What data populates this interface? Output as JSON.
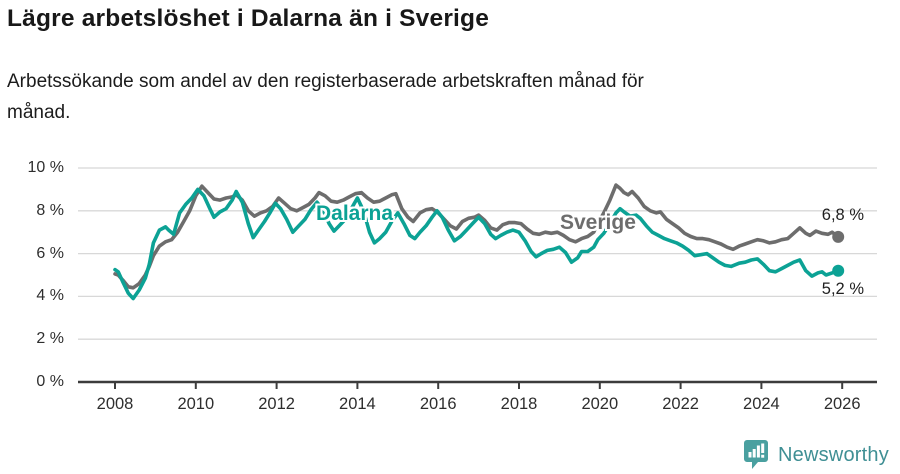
{
  "title": "Lägre arbetslöshet i Dalarna än i Sverige",
  "subtitle": "Arbetssökande som andel av den registerbaserade arbetskraften månad för\nmånad.",
  "branding": {
    "logo_text": "Newsworthy",
    "logo_icon": "newsworthy-speech-bubble-bar-chart-icon"
  },
  "colors": {
    "teal": "#0CA295",
    "gray": "#6D6D6D",
    "grid": "#D8D8D8",
    "axis": "#3C3C3C",
    "title_text": "#181818",
    "tick_text": "#2E2E2E",
    "logo_bubble": "#4AA0A0",
    "logo_text": "#3F8F94"
  },
  "chart_data": {
    "type": "line",
    "title": "Lägre arbetslöshet i Dalarna än i Sverige",
    "subtitle": "Arbetssökande som andel av den registerbaserade arbetskraften månad för månad.",
    "xlabel": "",
    "ylabel": "",
    "grid": true,
    "legend": "inline-labels-on-lines",
    "x_axis": {
      "range_years": [
        2007.3,
        2026.8
      ],
      "ticks": [
        {
          "label": "2008",
          "value": 2008
        },
        {
          "label": "2010",
          "value": 2010
        },
        {
          "label": "2012",
          "value": 2012
        },
        {
          "label": "2014",
          "value": 2014
        },
        {
          "label": "2016",
          "value": 2016
        },
        {
          "label": "2018",
          "value": 2018
        },
        {
          "label": "2020",
          "value": 2020
        },
        {
          "label": "2022",
          "value": 2022
        },
        {
          "label": "2024",
          "value": 2024
        },
        {
          "label": "2026",
          "value": 2026
        }
      ]
    },
    "y_axis": {
      "range": [
        0,
        10
      ],
      "ticks": [
        {
          "label": "0 %",
          "value": 0
        },
        {
          "label": "2 %",
          "value": 2
        },
        {
          "label": "4 %",
          "value": 4
        },
        {
          "label": "6 %",
          "value": 6
        },
        {
          "label": "8 %",
          "value": 8
        },
        {
          "label": "10 %",
          "value": 10
        }
      ]
    },
    "series": [
      {
        "name": "Dalarna",
        "color": "#0CA295",
        "end_label": "5,2 %",
        "end_value": 5.2,
        "points": [
          [
            2008.0,
            5.25
          ],
          [
            2008.08,
            5.15
          ],
          [
            2008.2,
            4.65
          ],
          [
            2008.33,
            4.15
          ],
          [
            2008.45,
            3.9
          ],
          [
            2008.6,
            4.3
          ],
          [
            2008.75,
            4.85
          ],
          [
            2008.85,
            5.5
          ],
          [
            2008.95,
            6.5
          ],
          [
            2009.1,
            7.1
          ],
          [
            2009.25,
            7.25
          ],
          [
            2009.33,
            7.1
          ],
          [
            2009.45,
            6.9
          ],
          [
            2009.6,
            7.9
          ],
          [
            2009.75,
            8.3
          ],
          [
            2009.9,
            8.6
          ],
          [
            2010.05,
            9.0
          ],
          [
            2010.2,
            8.7
          ],
          [
            2010.35,
            8.1
          ],
          [
            2010.45,
            7.7
          ],
          [
            2010.6,
            7.95
          ],
          [
            2010.75,
            8.1
          ],
          [
            2010.9,
            8.5
          ],
          [
            2011.0,
            8.9
          ],
          [
            2011.15,
            8.4
          ],
          [
            2011.3,
            7.4
          ],
          [
            2011.42,
            6.75
          ],
          [
            2011.55,
            7.1
          ],
          [
            2011.7,
            7.5
          ],
          [
            2011.85,
            7.95
          ],
          [
            2011.97,
            8.35
          ],
          [
            2012.1,
            8.1
          ],
          [
            2012.25,
            7.6
          ],
          [
            2012.4,
            7.0
          ],
          [
            2012.55,
            7.3
          ],
          [
            2012.7,
            7.6
          ],
          [
            2012.85,
            8.05
          ],
          [
            2013.0,
            8.4
          ],
          [
            2013.15,
            8.05
          ],
          [
            2013.3,
            7.4
          ],
          [
            2013.42,
            7.05
          ],
          [
            2013.55,
            7.3
          ],
          [
            2013.7,
            7.6
          ],
          [
            2013.85,
            8.1
          ],
          [
            2014.0,
            8.6
          ],
          [
            2014.15,
            8.0
          ],
          [
            2014.3,
            7.0
          ],
          [
            2014.42,
            6.5
          ],
          [
            2014.55,
            6.7
          ],
          [
            2014.7,
            7.0
          ],
          [
            2014.85,
            7.5
          ],
          [
            2015.0,
            7.9
          ],
          [
            2015.15,
            7.4
          ],
          [
            2015.3,
            6.85
          ],
          [
            2015.42,
            6.7
          ],
          [
            2015.55,
            7.0
          ],
          [
            2015.7,
            7.3
          ],
          [
            2015.85,
            7.7
          ],
          [
            2015.97,
            8.0
          ],
          [
            2016.1,
            7.7
          ],
          [
            2016.25,
            7.1
          ],
          [
            2016.4,
            6.6
          ],
          [
            2016.55,
            6.8
          ],
          [
            2016.7,
            7.1
          ],
          [
            2016.85,
            7.4
          ],
          [
            2017.0,
            7.7
          ],
          [
            2017.15,
            7.4
          ],
          [
            2017.3,
            6.9
          ],
          [
            2017.42,
            6.7
          ],
          [
            2017.55,
            6.85
          ],
          [
            2017.7,
            7.0
          ],
          [
            2017.85,
            7.1
          ],
          [
            2018.0,
            7.0
          ],
          [
            2018.15,
            6.6
          ],
          [
            2018.3,
            6.1
          ],
          [
            2018.42,
            5.85
          ],
          [
            2018.55,
            6.0
          ],
          [
            2018.7,
            6.15
          ],
          [
            2018.85,
            6.2
          ],
          [
            2019.0,
            6.3
          ],
          [
            2019.15,
            6.05
          ],
          [
            2019.3,
            5.6
          ],
          [
            2019.45,
            5.8
          ],
          [
            2019.55,
            6.1
          ],
          [
            2019.7,
            6.1
          ],
          [
            2019.85,
            6.3
          ],
          [
            2019.95,
            6.65
          ],
          [
            2020.1,
            6.95
          ],
          [
            2020.25,
            7.4
          ],
          [
            2020.4,
            7.9
          ],
          [
            2020.5,
            8.1
          ],
          [
            2020.6,
            7.95
          ],
          [
            2020.75,
            7.75
          ],
          [
            2020.9,
            7.8
          ],
          [
            2021.0,
            7.65
          ],
          [
            2021.15,
            7.3
          ],
          [
            2021.3,
            7.0
          ],
          [
            2021.45,
            6.85
          ],
          [
            2021.6,
            6.7
          ],
          [
            2021.75,
            6.6
          ],
          [
            2021.9,
            6.5
          ],
          [
            2022.05,
            6.35
          ],
          [
            2022.2,
            6.15
          ],
          [
            2022.35,
            5.9
          ],
          [
            2022.5,
            5.95
          ],
          [
            2022.65,
            6.0
          ],
          [
            2022.8,
            5.8
          ],
          [
            2022.95,
            5.6
          ],
          [
            2023.1,
            5.45
          ],
          [
            2023.25,
            5.4
          ],
          [
            2023.45,
            5.55
          ],
          [
            2023.6,
            5.6
          ],
          [
            2023.75,
            5.7
          ],
          [
            2023.9,
            5.75
          ],
          [
            2024.05,
            5.5
          ],
          [
            2024.2,
            5.2
          ],
          [
            2024.35,
            5.15
          ],
          [
            2024.5,
            5.3
          ],
          [
            2024.65,
            5.45
          ],
          [
            2024.8,
            5.6
          ],
          [
            2024.95,
            5.7
          ],
          [
            2025.1,
            5.2
          ],
          [
            2025.25,
            4.95
          ],
          [
            2025.4,
            5.1
          ],
          [
            2025.5,
            5.15
          ],
          [
            2025.6,
            5.0
          ],
          [
            2025.75,
            5.1
          ],
          [
            2025.9,
            5.2
          ]
        ]
      },
      {
        "name": "Sverige",
        "color": "#6D6D6D",
        "end_label": "6,8 %",
        "end_value": 6.8,
        "points": [
          [
            2008.0,
            5.05
          ],
          [
            2008.08,
            5.0
          ],
          [
            2008.2,
            4.75
          ],
          [
            2008.33,
            4.45
          ],
          [
            2008.45,
            4.4
          ],
          [
            2008.6,
            4.6
          ],
          [
            2008.75,
            5.0
          ],
          [
            2008.85,
            5.4
          ],
          [
            2008.95,
            5.9
          ],
          [
            2009.1,
            6.35
          ],
          [
            2009.25,
            6.55
          ],
          [
            2009.4,
            6.65
          ],
          [
            2009.55,
            7.0
          ],
          [
            2009.7,
            7.5
          ],
          [
            2009.85,
            8.0
          ],
          [
            2010.0,
            8.7
          ],
          [
            2010.15,
            9.15
          ],
          [
            2010.3,
            8.85
          ],
          [
            2010.45,
            8.55
          ],
          [
            2010.6,
            8.5
          ],
          [
            2010.75,
            8.6
          ],
          [
            2010.9,
            8.65
          ],
          [
            2011.0,
            8.75
          ],
          [
            2011.15,
            8.5
          ],
          [
            2011.3,
            8.0
          ],
          [
            2011.45,
            7.75
          ],
          [
            2011.6,
            7.9
          ],
          [
            2011.75,
            8.0
          ],
          [
            2011.9,
            8.2
          ],
          [
            2012.05,
            8.6
          ],
          [
            2012.2,
            8.35
          ],
          [
            2012.35,
            8.1
          ],
          [
            2012.5,
            8.0
          ],
          [
            2012.65,
            8.15
          ],
          [
            2012.8,
            8.3
          ],
          [
            2012.95,
            8.6
          ],
          [
            2013.05,
            8.85
          ],
          [
            2013.2,
            8.7
          ],
          [
            2013.35,
            8.45
          ],
          [
            2013.5,
            8.4
          ],
          [
            2013.65,
            8.5
          ],
          [
            2013.8,
            8.65
          ],
          [
            2013.95,
            8.8
          ],
          [
            2014.1,
            8.85
          ],
          [
            2014.25,
            8.6
          ],
          [
            2014.4,
            8.4
          ],
          [
            2014.55,
            8.45
          ],
          [
            2014.7,
            8.6
          ],
          [
            2014.85,
            8.75
          ],
          [
            2014.95,
            8.8
          ],
          [
            2015.1,
            8.1
          ],
          [
            2015.25,
            7.7
          ],
          [
            2015.38,
            7.5
          ],
          [
            2015.55,
            7.9
          ],
          [
            2015.7,
            8.05
          ],
          [
            2015.85,
            8.1
          ],
          [
            2016.0,
            7.9
          ],
          [
            2016.15,
            7.6
          ],
          [
            2016.3,
            7.3
          ],
          [
            2016.45,
            7.15
          ],
          [
            2016.6,
            7.5
          ],
          [
            2016.75,
            7.65
          ],
          [
            2016.9,
            7.7
          ],
          [
            2017.0,
            7.8
          ],
          [
            2017.15,
            7.55
          ],
          [
            2017.3,
            7.2
          ],
          [
            2017.45,
            7.1
          ],
          [
            2017.6,
            7.35
          ],
          [
            2017.75,
            7.45
          ],
          [
            2017.9,
            7.45
          ],
          [
            2018.05,
            7.4
          ],
          [
            2018.2,
            7.15
          ],
          [
            2018.35,
            6.95
          ],
          [
            2018.5,
            6.9
          ],
          [
            2018.65,
            7.0
          ],
          [
            2018.8,
            6.95
          ],
          [
            2018.95,
            7.0
          ],
          [
            2019.1,
            6.85
          ],
          [
            2019.25,
            6.65
          ],
          [
            2019.4,
            6.55
          ],
          [
            2019.55,
            6.7
          ],
          [
            2019.7,
            6.8
          ],
          [
            2019.85,
            7.0
          ],
          [
            2019.95,
            7.4
          ],
          [
            2020.1,
            7.9
          ],
          [
            2020.25,
            8.5
          ],
          [
            2020.4,
            9.2
          ],
          [
            2020.5,
            9.05
          ],
          [
            2020.6,
            8.85
          ],
          [
            2020.7,
            8.75
          ],
          [
            2020.8,
            8.9
          ],
          [
            2020.95,
            8.6
          ],
          [
            2021.1,
            8.2
          ],
          [
            2021.25,
            8.0
          ],
          [
            2021.4,
            7.9
          ],
          [
            2021.5,
            7.95
          ],
          [
            2021.65,
            7.6
          ],
          [
            2021.8,
            7.4
          ],
          [
            2021.95,
            7.2
          ],
          [
            2022.1,
            6.95
          ],
          [
            2022.25,
            6.8
          ],
          [
            2022.4,
            6.7
          ],
          [
            2022.55,
            6.7
          ],
          [
            2022.7,
            6.65
          ],
          [
            2022.85,
            6.55
          ],
          [
            2023.0,
            6.45
          ],
          [
            2023.15,
            6.3
          ],
          [
            2023.3,
            6.2
          ],
          [
            2023.45,
            6.35
          ],
          [
            2023.6,
            6.45
          ],
          [
            2023.75,
            6.55
          ],
          [
            2023.9,
            6.65
          ],
          [
            2024.05,
            6.6
          ],
          [
            2024.2,
            6.5
          ],
          [
            2024.35,
            6.55
          ],
          [
            2024.5,
            6.65
          ],
          [
            2024.65,
            6.7
          ],
          [
            2024.8,
            6.95
          ],
          [
            2024.95,
            7.2
          ],
          [
            2025.1,
            6.95
          ],
          [
            2025.2,
            6.85
          ],
          [
            2025.35,
            7.05
          ],
          [
            2025.5,
            6.95
          ],
          [
            2025.65,
            6.9
          ],
          [
            2025.75,
            7.0
          ],
          [
            2025.9,
            6.78
          ]
        ]
      }
    ]
  }
}
